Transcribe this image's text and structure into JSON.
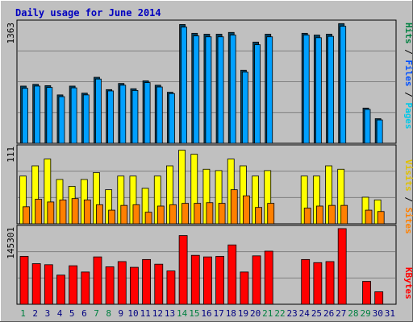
{
  "title": "Daily usage for June 2014",
  "colors": {
    "background": "#C0C0C0",
    "title": "#0000C0",
    "hits": "#00A0FF",
    "hits_dark": "#004060",
    "files": "#0050FF",
    "pages": "#00C8E8",
    "visits": "#FFFF00",
    "sites": "#FF8000",
    "kbytes": "#FF0000",
    "hits_label": "#008040",
    "weekend_label": "#008040",
    "weekday_label": "#000080"
  },
  "axis_labels": {
    "top_max": "1363",
    "mid_max": "111",
    "bottom_max": "145301",
    "top_right": [
      "Pages",
      "Files",
      "Hits"
    ],
    "mid_right": [
      "Sites",
      "Visits"
    ],
    "bottom_right": "KBytes"
  },
  "chart_data": [
    {
      "type": "bar",
      "panel": "hits-files-pages",
      "categories": [
        "1",
        "2",
        "3",
        "4",
        "5",
        "6",
        "7",
        "8",
        "9",
        "10",
        "11",
        "12",
        "13",
        "14",
        "15",
        "16",
        "17",
        "18",
        "19",
        "20",
        "21",
        "22",
        "23",
        "24",
        "25",
        "26",
        "27",
        "28",
        "29",
        "30",
        "31"
      ],
      "ylim": [
        0,
        1363
      ],
      "series": [
        {
          "name": "Hits",
          "values": [
            650,
            670,
            655,
            550,
            650,
            570,
            750,
            610,
            680,
            620,
            710,
            660,
            580,
            1350,
            1250,
            1240,
            1240,
            1260,
            830,
            1150,
            1240,
            0,
            0,
            1250,
            1230,
            1240,
            1360,
            0,
            400,
            280,
            0
          ]
        },
        {
          "name": "Files",
          "values": [
            625,
            650,
            635,
            530,
            630,
            550,
            730,
            595,
            660,
            600,
            690,
            640,
            565,
            1320,
            1220,
            1210,
            1210,
            1230,
            810,
            1120,
            1210,
            0,
            0,
            1230,
            1200,
            1215,
            1330,
            0,
            385,
            265,
            0
          ]
        }
      ]
    },
    {
      "type": "bar",
      "panel": "visits-sites",
      "categories": [
        "1",
        "2",
        "3",
        "4",
        "5",
        "6",
        "7",
        "8",
        "9",
        "10",
        "11",
        "12",
        "13",
        "14",
        "15",
        "16",
        "17",
        "18",
        "19",
        "20",
        "21",
        "22",
        "23",
        "24",
        "25",
        "26",
        "27",
        "28",
        "29",
        "30",
        "31"
      ],
      "ylim": [
        0,
        111
      ],
      "series": [
        {
          "name": "Visits",
          "values": [
            70,
            85,
            95,
            65,
            55,
            65,
            75,
            50,
            70,
            70,
            52,
            70,
            85,
            108,
            102,
            80,
            78,
            95,
            85,
            70,
            78,
            0,
            0,
            70,
            70,
            85,
            80,
            0,
            39,
            35,
            0
          ]
        },
        {
          "name": "Sites",
          "values": [
            25,
            36,
            32,
            35,
            37,
            35,
            28,
            20,
            27,
            28,
            17,
            26,
            28,
            30,
            30,
            31,
            30,
            50,
            41,
            24,
            30,
            0,
            0,
            23,
            26,
            27,
            27,
            0,
            20,
            18,
            0
          ]
        }
      ]
    },
    {
      "type": "bar",
      "panel": "kbytes",
      "categories": [
        "1",
        "2",
        "3",
        "4",
        "5",
        "6",
        "7",
        "8",
        "9",
        "10",
        "11",
        "12",
        "13",
        "14",
        "15",
        "16",
        "17",
        "18",
        "19",
        "20",
        "21",
        "22",
        "23",
        "24",
        "25",
        "26",
        "27",
        "28",
        "29",
        "30",
        "31"
      ],
      "ylim": [
        0,
        145301
      ],
      "series": [
        {
          "name": "KBytes",
          "values": [
            92000,
            78000,
            76000,
            56000,
            74000,
            62000,
            91000,
            72000,
            82000,
            71000,
            86000,
            77000,
            64000,
            132000,
            94000,
            91000,
            92000,
            114000,
            62000,
            93000,
            102000,
            0,
            0,
            86000,
            80000,
            82000,
            145301,
            0,
            44000,
            24000,
            0
          ]
        }
      ]
    }
  ],
  "days": [
    {
      "label": "1",
      "weekend": true
    },
    {
      "label": "2",
      "weekend": false
    },
    {
      "label": "3",
      "weekend": false
    },
    {
      "label": "4",
      "weekend": false
    },
    {
      "label": "5",
      "weekend": false
    },
    {
      "label": "6",
      "weekend": false
    },
    {
      "label": "7",
      "weekend": true
    },
    {
      "label": "8",
      "weekend": true
    },
    {
      "label": "9",
      "weekend": false
    },
    {
      "label": "10",
      "weekend": false
    },
    {
      "label": "11",
      "weekend": false
    },
    {
      "label": "12",
      "weekend": false
    },
    {
      "label": "13",
      "weekend": false
    },
    {
      "label": "14",
      "weekend": true
    },
    {
      "label": "15",
      "weekend": true
    },
    {
      "label": "16",
      "weekend": false
    },
    {
      "label": "17",
      "weekend": false
    },
    {
      "label": "18",
      "weekend": false
    },
    {
      "label": "19",
      "weekend": false
    },
    {
      "label": "20",
      "weekend": false
    },
    {
      "label": "21",
      "weekend": true
    },
    {
      "label": "22",
      "weekend": true
    },
    {
      "label": "23",
      "weekend": false
    },
    {
      "label": "24",
      "weekend": false
    },
    {
      "label": "25",
      "weekend": false
    },
    {
      "label": "26",
      "weekend": false
    },
    {
      "label": "27",
      "weekend": false
    },
    {
      "label": "28",
      "weekend": true
    },
    {
      "label": "29",
      "weekend": true
    },
    {
      "label": "30",
      "weekend": false
    },
    {
      "label": "31",
      "weekend": false
    }
  ]
}
